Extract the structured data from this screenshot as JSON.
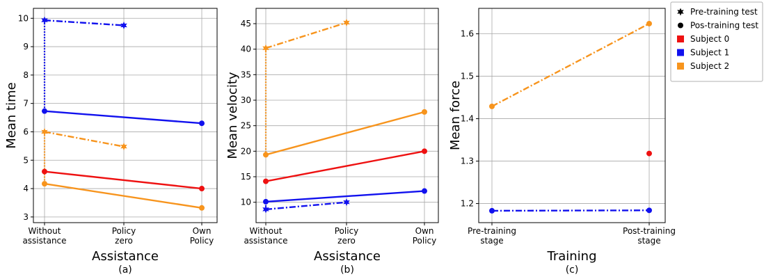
{
  "legend": {
    "placement": "upper-right-outside",
    "entries": [
      {
        "label": "Pre-training test",
        "marker": "star",
        "color": "#000000"
      },
      {
        "label": "Pos-training test",
        "marker": "circle",
        "color": "#000000"
      },
      {
        "label": "Subject 0",
        "marker": "square",
        "color": "#ee1111"
      },
      {
        "label": "Subject 1",
        "marker": "square",
        "color": "#1111ee"
      },
      {
        "label": "Subject 2",
        "marker": "square",
        "color": "#f7941d"
      }
    ]
  },
  "chart_data": [
    {
      "type": "line",
      "panel_label": "(a)",
      "xlabel": "Assistance",
      "ylabel": "Mean time",
      "categories": [
        [
          "Without",
          "assistance"
        ],
        [
          "Policy",
          "zero"
        ],
        [
          "Own",
          "Policy"
        ]
      ],
      "ylim": [
        2.8,
        10.35
      ],
      "yticks": [
        3,
        4,
        5,
        6,
        7,
        8,
        9,
        10
      ],
      "grid": true,
      "series": [
        {
          "color": "#1111ee",
          "style": "dashdot",
          "marker": "star",
          "points": [
            [
              0,
              9.93
            ],
            [
              1,
              9.75
            ]
          ]
        },
        {
          "color": "#1111ee",
          "style": "solid",
          "marker": "circle",
          "points": [
            [
              0,
              6.73
            ],
            [
              2,
              6.3
            ]
          ]
        },
        {
          "color": "#1111ee",
          "style": "dotted",
          "marker": "none",
          "points": [
            [
              0,
              9.93
            ],
            [
              0,
              6.73
            ]
          ]
        },
        {
          "color": "#f7941d",
          "style": "dashdot",
          "marker": "star",
          "points": [
            [
              0,
              6.0
            ],
            [
              1,
              5.48
            ]
          ]
        },
        {
          "color": "#f7941d",
          "style": "solid",
          "marker": "circle",
          "points": [
            [
              0,
              4.17
            ],
            [
              2,
              3.32
            ]
          ]
        },
        {
          "color": "#f7941d",
          "style": "dotted",
          "marker": "none",
          "points": [
            [
              0,
              6.0
            ],
            [
              0,
              4.17
            ]
          ]
        },
        {
          "color": "#ee1111",
          "style": "solid",
          "marker": "circle",
          "points": [
            [
              0,
              4.6
            ],
            [
              2,
              4.0
            ]
          ]
        }
      ]
    },
    {
      "type": "line",
      "panel_label": "(b)",
      "xlabel": "Assistance",
      "ylabel": "Mean velocity",
      "categories": [
        [
          "Without",
          "assistance"
        ],
        [
          "Policy",
          "zero"
        ],
        [
          "Own",
          "Policy"
        ]
      ],
      "ylim": [
        6,
        48
      ],
      "yticks": [
        10,
        15,
        20,
        25,
        30,
        35,
        40,
        45
      ],
      "grid": true,
      "series": [
        {
          "color": "#f7941d",
          "style": "dashdot",
          "marker": "star",
          "points": [
            [
              0,
              40.2
            ],
            [
              1,
              45.2
            ]
          ]
        },
        {
          "color": "#f7941d",
          "style": "solid",
          "marker": "circle",
          "points": [
            [
              0,
              19.3
            ],
            [
              2,
              27.7
            ]
          ]
        },
        {
          "color": "#f7941d",
          "style": "dotted",
          "marker": "none",
          "points": [
            [
              0,
              40.2
            ],
            [
              0,
              19.3
            ]
          ]
        },
        {
          "color": "#ee1111",
          "style": "solid",
          "marker": "circle",
          "points": [
            [
              0,
              14.1
            ],
            [
              2,
              20.0
            ]
          ]
        },
        {
          "color": "#1111ee",
          "style": "solid",
          "marker": "circle",
          "points": [
            [
              0,
              10.1
            ],
            [
              2,
              12.2
            ]
          ]
        },
        {
          "color": "#1111ee",
          "style": "dashdot",
          "marker": "star",
          "points": [
            [
              0,
              8.6
            ],
            [
              1,
              10.0
            ]
          ]
        },
        {
          "color": "#1111ee",
          "style": "dotted",
          "marker": "none",
          "points": [
            [
              0,
              8.6
            ],
            [
              0,
              10.1
            ]
          ]
        }
      ]
    },
    {
      "type": "line",
      "panel_label": "(c)",
      "xlabel": "Training",
      "ylabel": "Mean force",
      "categories": [
        [
          "Pre-training",
          "stage"
        ],
        [
          "Post-training",
          "stage"
        ]
      ],
      "ylim": [
        1.155,
        1.66
      ],
      "yticks": [
        1.2,
        1.3,
        1.4,
        1.5,
        1.6
      ],
      "grid": true,
      "series": [
        {
          "color": "#f7941d",
          "style": "dashdot",
          "marker": "circle",
          "points": [
            [
              0,
              1.429
            ],
            [
              1,
              1.624
            ]
          ]
        },
        {
          "color": "#1111ee",
          "style": "dashdot",
          "marker": "circle",
          "points": [
            [
              0,
              1.183
            ],
            [
              1,
              1.184
            ]
          ]
        },
        {
          "color": "#ee1111",
          "style": "none",
          "marker": "circle",
          "points": [
            [
              1,
              1.318
            ]
          ]
        }
      ]
    }
  ]
}
